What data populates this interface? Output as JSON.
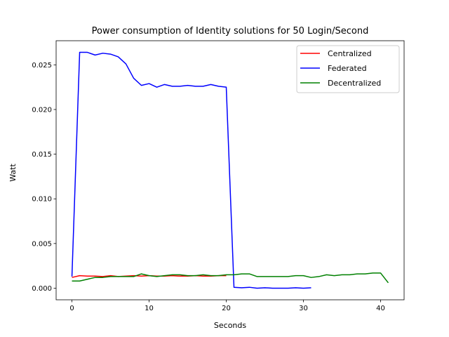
{
  "chart_data": {
    "type": "line",
    "title": "Power consumption of Identity solutions for 50 Login/Second",
    "xlabel": "Seconds",
    "ylabel": "Watt",
    "xlim": [
      -2.05,
      43.05
    ],
    "ylim": [
      -0.0013,
      0.0277
    ],
    "xticks": [
      0,
      10,
      20,
      30,
      40
    ],
    "yticks": [
      0.0,
      0.005,
      0.01,
      0.015,
      0.02,
      0.025
    ],
    "ytick_labels": [
      "0.000",
      "0.005",
      "0.010",
      "0.015",
      "0.020",
      "0.025"
    ],
    "grid": false,
    "legend": "top-right",
    "series": [
      {
        "name": "Centralized",
        "color": "#ff0000",
        "x": [
          0,
          1,
          2,
          3,
          4,
          5,
          6,
          7,
          8,
          9,
          10,
          11,
          12,
          13,
          14,
          15,
          16,
          17,
          18,
          19,
          20
        ],
        "y": [
          0.0012,
          0.0014,
          0.00135,
          0.00135,
          0.0013,
          0.0014,
          0.0013,
          0.00135,
          0.0014,
          0.00135,
          0.0014,
          0.00135,
          0.00135,
          0.0014,
          0.00135,
          0.00135,
          0.0014,
          0.00135,
          0.00135,
          0.0014,
          0.0014
        ]
      },
      {
        "name": "Federated",
        "color": "#0000ff",
        "x": [
          0,
          1,
          2,
          3,
          4,
          5,
          6,
          7,
          8,
          9,
          10,
          11,
          12,
          13,
          14,
          15,
          16,
          17,
          18,
          19,
          20,
          21,
          22,
          23,
          24,
          25,
          26,
          27,
          28,
          29,
          30,
          31
        ],
        "y": [
          0.0013,
          0.0264,
          0.0264,
          0.0261,
          0.0263,
          0.0262,
          0.0259,
          0.0251,
          0.0235,
          0.0227,
          0.0229,
          0.0225,
          0.0228,
          0.0226,
          0.0226,
          0.0227,
          0.0226,
          0.0226,
          0.0228,
          0.0226,
          0.0225,
          0.0001,
          5e-05,
          0.0001,
          0.0,
          5e-05,
          0.0,
          0.0,
          0.0,
          5e-05,
          0.0,
          5e-05
        ]
      },
      {
        "name": "Decentralized",
        "color": "#008000",
        "x": [
          0,
          1,
          2,
          3,
          4,
          5,
          6,
          7,
          8,
          9,
          10,
          11,
          12,
          13,
          14,
          15,
          16,
          17,
          18,
          19,
          20,
          21,
          22,
          23,
          24,
          25,
          26,
          27,
          28,
          29,
          30,
          31,
          32,
          33,
          34,
          35,
          36,
          37,
          38,
          39,
          40,
          41
        ],
        "y": [
          0.0008,
          0.0008,
          0.001,
          0.0012,
          0.0012,
          0.0013,
          0.0013,
          0.0013,
          0.0013,
          0.0016,
          0.0014,
          0.0013,
          0.0014,
          0.0015,
          0.0015,
          0.0014,
          0.0014,
          0.0015,
          0.0014,
          0.0014,
          0.0015,
          0.0015,
          0.0016,
          0.0016,
          0.0013,
          0.0013,
          0.0013,
          0.0013,
          0.0013,
          0.0014,
          0.0014,
          0.0012,
          0.0013,
          0.0015,
          0.0014,
          0.0015,
          0.0015,
          0.0016,
          0.0016,
          0.0017,
          0.0017,
          0.0006
        ]
      }
    ]
  }
}
